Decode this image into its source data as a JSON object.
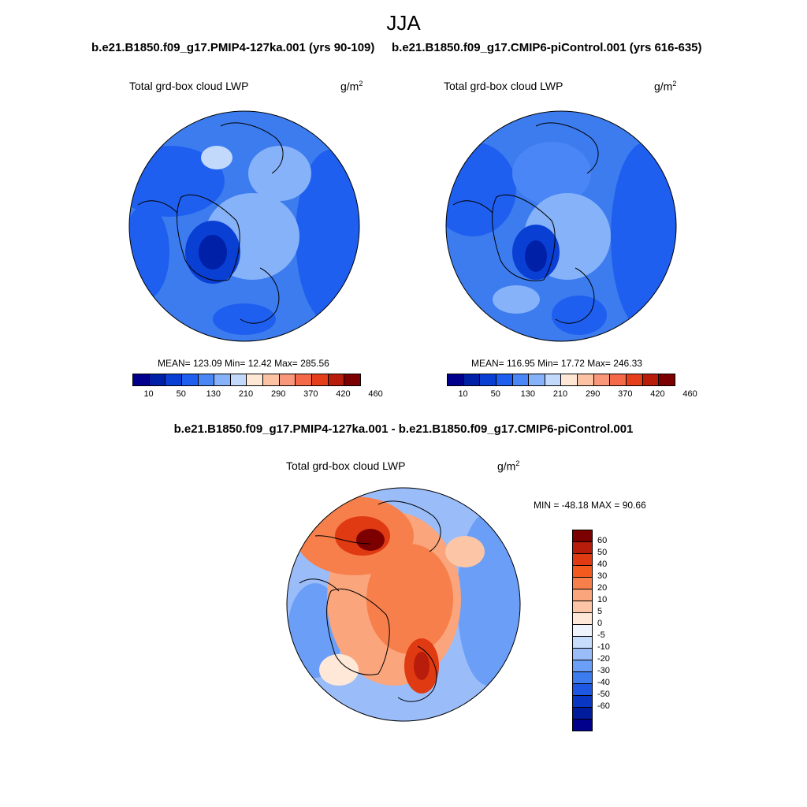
{
  "figure": {
    "season": "JJA",
    "left_case_title": "b.e21.B1850.f09_g17.PMIP4-127ka.001 (yrs 90-109)",
    "right_case_title": "b.e21.B1850.f09_g17.CMIP6-piControl.001 (yrs 616-635)",
    "diff_title": "b.e21.B1850.f09_g17.PMIP4-127ka.001 - b.e21.B1850.f09_g17.CMIP6-piControl.001"
  },
  "panels": {
    "left": {
      "variable": "Total grd-box cloud LWP",
      "units_base": "g/m",
      "units_exp": "2",
      "stats": "MEAN= 123.09  Min=  12.42  Max= 285.56"
    },
    "right": {
      "variable": "Total grd-box cloud LWP",
      "units_base": "g/m",
      "units_exp": "2",
      "stats": "MEAN= 116.95  Min=  17.72  Max= 246.33"
    },
    "diff": {
      "variable": "Total grd-box cloud LWP",
      "units_base": "g/m",
      "units_exp": "2",
      "stats": "MIN = -48.18 MAX =  90.66"
    }
  },
  "abs_colorbar": {
    "colors": [
      "#00008c",
      "#0020a8",
      "#0a3fd4",
      "#1f5fef",
      "#4a86f5",
      "#86b2f9",
      "#c2d9fc",
      "#ffe7d6",
      "#fcc2a4",
      "#f9977a",
      "#f46a48",
      "#e43e1b",
      "#b81d0c",
      "#7d0000"
    ],
    "labels": [
      "10",
      "50",
      "130",
      "210",
      "290",
      "370",
      "420",
      "460"
    ]
  },
  "diff_colorbar": {
    "labels": [
      "60",
      "50",
      "40",
      "30",
      "20",
      "10",
      "5",
      "0",
      "-5",
      "-10",
      "-20",
      "-30",
      "-40",
      "-50",
      "-60"
    ],
    "colors": [
      "#7d0000",
      "#b81d0c",
      "#e03a12",
      "#f35b1e",
      "#f77f4c",
      "#faa57c",
      "#fcc6a6",
      "#ffe8d8",
      "#eef3fc",
      "#c8dcfc",
      "#9abdfa",
      "#6b9ef6",
      "#3d7cef",
      "#1d57e2",
      "#0a36c4",
      "#001c9c",
      "#00008c"
    ]
  }
}
